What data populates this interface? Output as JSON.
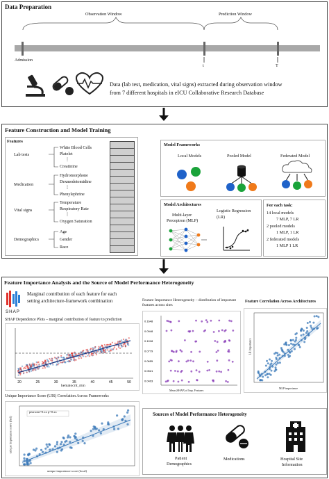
{
  "data_preparation": {
    "title": "Data Preparation",
    "observation_window": "Observation Window",
    "prediction_window": "Prediction Window",
    "admission": "Admission",
    "t_label": "t",
    "T_label": "T",
    "description_line1": "Data (lab test, medication, vital signs) extracted during observation window",
    "description_line2": "from 7 different hospitals in eICU Collaborative Research Database"
  },
  "feature_construction": {
    "title": "Feature Construction and Model Training",
    "features_title": "Features",
    "groups": [
      {
        "name": "Lab tests",
        "items": [
          "White Blood Cells",
          "Platelet",
          "⋮",
          "Creatinine"
        ]
      },
      {
        "name": "Medication",
        "items": [
          "Hydromorphone",
          "Dexmedetomidine",
          "⋮",
          "Phenylephrine"
        ]
      },
      {
        "name": "Vital signs",
        "items": [
          "Temperature",
          "Respiratory Rate",
          "⋮",
          "Oxygen Saturation"
        ]
      },
      {
        "name": "Demographics",
        "items": [
          "Age",
          "Gender",
          "Race"
        ]
      }
    ]
  },
  "model_frameworks": {
    "title": "Model Frameworks",
    "local": "Local Models",
    "pooled": "Pooled Model",
    "federated": "Federated Model"
  },
  "model_architectures": {
    "title": "Model Architectures",
    "mlp_line1": "Multi-layer",
    "mlp_line2": "Perceptron (MLP)",
    "lr_line1": "Logistic Regression",
    "lr_line2": "(LR)"
  },
  "each_task": {
    "title": "For each task:",
    "items": [
      "14 local models",
      "7 MLP, 7 LR",
      "2 pooled models",
      "1 MLP, 1 LR",
      "2 federated models",
      "1 MLP 1 LR"
    ]
  },
  "feature_importance": {
    "title": "Feature Importance Analysis and the Source of Model Performance Heterogeneity",
    "shap_logo": "SHAP",
    "shap_desc_line1": "Marginal contribution of each feature for each",
    "shap_desc_line2": "setting architecture-framework combination",
    "dependence_title": "SHAP Dependence Plots – marginal contribution of feature to prediction",
    "dependence_xlabel": "hematocrit_min",
    "dependence_xticks": [
      "20",
      "25",
      "30",
      "35",
      "40",
      "45",
      "50"
    ],
    "uis_title": "Unique Importance Score (UIS) Correlation Across Frameworks",
    "uis_legend": "pearsonr=0.xx p=0.xx",
    "uis_xlabel": "unique importance score (local)",
    "uis_ylabel": "unique importance score (fed)",
    "heterogeneity_title": "Feature Importance Heterogeneity – distribution of important features across sites",
    "heterogeneity_xlabel": "Mean |SHAP| of Imp. Features",
    "heterogeneity_ylabels": [
      "0.1648",
      "0.0948",
      "0.1018",
      "0.0779",
      "0.0655",
      "0.0521",
      "0.0403"
    ],
    "correlation_title": "Feature Correlation Across Architectures",
    "correlation_xlabel": "MLP importance",
    "correlation_ylabel": "LR importance"
  },
  "sources": {
    "title": "Sources of Model Performance Heterogeneity",
    "patient_line1": "Patient",
    "patient_line2": "Demographics",
    "medications": "Medications",
    "hospital_line1": "Hospital Site",
    "hospital_line2": "Information"
  },
  "colors": {
    "blue": "#1f62c9",
    "green": "#1aa33a",
    "orange": "#f07a1a",
    "purple": "#8a3db8",
    "chart_blue": "#3a78b8",
    "shap_red": "#e0302a"
  }
}
